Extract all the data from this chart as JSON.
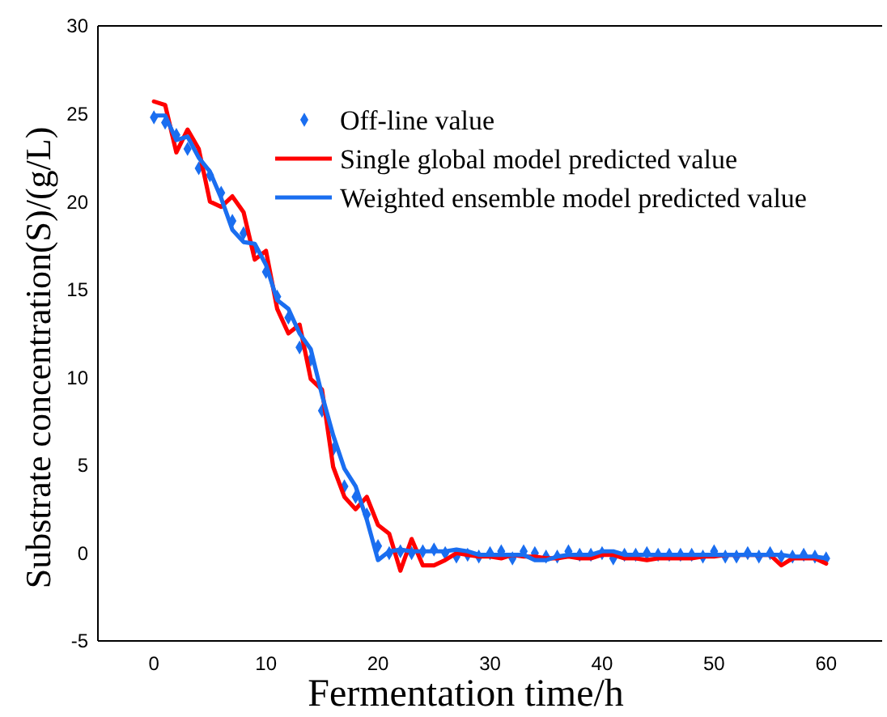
{
  "chart_data": {
    "type": "line",
    "xlabel": "Fermentation time/h",
    "ylabel": "Substrate concentration(S)/(g/L)",
    "xlim": [
      -5,
      65
    ],
    "ylim": [
      -5,
      30
    ],
    "xticks": [
      0,
      10,
      20,
      30,
      40,
      50,
      60
    ],
    "yticks": [
      -5,
      0,
      5,
      10,
      15,
      20,
      25,
      30
    ],
    "grid": false,
    "legend": "top",
    "x": [
      0,
      1,
      2,
      3,
      4,
      5,
      6,
      7,
      8,
      9,
      10,
      11,
      12,
      13,
      14,
      15,
      16,
      17,
      18,
      19,
      20,
      21,
      22,
      23,
      24,
      25,
      26,
      27,
      28,
      29,
      30,
      31,
      32,
      33,
      34,
      35,
      36,
      37,
      38,
      39,
      40,
      41,
      42,
      43,
      44,
      45,
      46,
      47,
      48,
      49,
      50,
      51,
      52,
      53,
      54,
      55,
      56,
      57,
      58,
      59,
      60
    ],
    "series": [
      {
        "name": "Off-line value",
        "type": "scatter",
        "marker": "diamond",
        "color": "#1a6ef0",
        "values": [
          24.8,
          24.5,
          23.8,
          23.0,
          21.9,
          21.5,
          20.5,
          18.9,
          18.2,
          17.3,
          16.0,
          14.6,
          13.4,
          11.7,
          11.0,
          8.1,
          5.9,
          3.8,
          3.2,
          2.2,
          0.4,
          0.0,
          0.1,
          0.0,
          0.1,
          0.2,
          0.0,
          -0.2,
          -0.1,
          -0.2,
          0.0,
          0.1,
          -0.3,
          0.1,
          0.0,
          -0.2,
          -0.2,
          0.1,
          -0.1,
          -0.1,
          0.0,
          -0.3,
          -0.1,
          -0.1,
          0.0,
          -0.1,
          -0.1,
          -0.1,
          -0.1,
          -0.2,
          0.1,
          -0.2,
          -0.2,
          0.0,
          -0.2,
          0.0,
          -0.2,
          -0.2,
          -0.1,
          -0.2,
          -0.3
        ]
      },
      {
        "name": "Single global model predicted value",
        "type": "line",
        "marker": "none",
        "line_style": "solid",
        "color": "#ff0000",
        "values": [
          25.7,
          25.5,
          22.8,
          24.1,
          23.0,
          20.0,
          19.7,
          20.3,
          19.4,
          16.7,
          17.2,
          13.9,
          12.5,
          13.0,
          9.9,
          9.3,
          4.9,
          3.2,
          2.5,
          3.2,
          1.6,
          1.1,
          -1.0,
          0.8,
          -0.7,
          -0.7,
          -0.4,
          0.0,
          -0.1,
          -0.2,
          -0.2,
          -0.3,
          -0.1,
          -0.2,
          -0.2,
          -0.3,
          -0.3,
          -0.2,
          -0.3,
          -0.3,
          -0.1,
          -0.1,
          -0.3,
          -0.3,
          -0.4,
          -0.3,
          -0.3,
          -0.3,
          -0.3,
          -0.2,
          -0.2,
          -0.1,
          -0.1,
          -0.1,
          -0.1,
          -0.1,
          -0.7,
          -0.3,
          -0.3,
          -0.3,
          -0.6
        ]
      },
      {
        "name": "Weighted ensemble model predicted value",
        "type": "line",
        "marker": "none",
        "line_style": "solid",
        "color": "#1a6ef0",
        "values": [
          24.9,
          24.9,
          23.5,
          23.7,
          22.5,
          21.7,
          20.2,
          18.4,
          17.7,
          17.6,
          16.4,
          14.4,
          13.9,
          12.5,
          11.6,
          9.0,
          6.7,
          4.8,
          3.8,
          1.9,
          -0.4,
          0.1,
          0.2,
          0.1,
          0.1,
          0.1,
          0.1,
          0.2,
          0.1,
          -0.1,
          -0.1,
          -0.1,
          -0.1,
          -0.1,
          -0.4,
          -0.4,
          -0.2,
          -0.1,
          -0.1,
          -0.1,
          0.1,
          0.1,
          -0.1,
          -0.1,
          -0.1,
          -0.1,
          -0.1,
          -0.1,
          -0.1,
          -0.1,
          -0.1,
          -0.1,
          -0.1,
          -0.1,
          -0.1,
          -0.1,
          -0.1,
          -0.2,
          -0.2,
          -0.2,
          -0.3
        ]
      }
    ]
  }
}
